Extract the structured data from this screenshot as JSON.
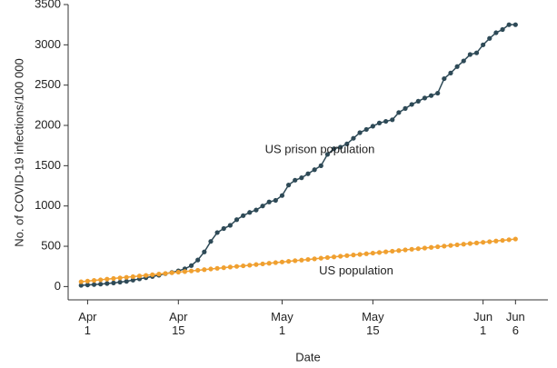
{
  "chart_data": {
    "type": "line",
    "y_label": "No. of COVID-19 infections/100 000",
    "x_label": "Date",
    "x": [
      "03-31",
      "04-01",
      "04-02",
      "04-03",
      "04-04",
      "04-05",
      "04-06",
      "04-07",
      "04-08",
      "04-09",
      "04-10",
      "04-11",
      "04-12",
      "04-13",
      "04-14",
      "04-15",
      "04-16",
      "04-17",
      "04-18",
      "04-19",
      "04-20",
      "04-21",
      "04-22",
      "04-23",
      "04-24",
      "04-25",
      "04-26",
      "04-27",
      "04-28",
      "04-29",
      "04-30",
      "05-01",
      "05-02",
      "05-03",
      "05-04",
      "05-05",
      "05-06",
      "05-07",
      "05-08",
      "05-09",
      "05-10",
      "05-11",
      "05-12",
      "05-13",
      "05-14",
      "05-15",
      "05-16",
      "05-17",
      "05-18",
      "05-19",
      "05-20",
      "05-21",
      "05-22",
      "05-23",
      "05-24",
      "05-25",
      "05-26",
      "05-27",
      "05-28",
      "05-29",
      "05-30",
      "05-31",
      "06-01",
      "06-02",
      "06-03",
      "06-04",
      "06-05",
      "06-06"
    ],
    "series": [
      {
        "name": "US prison population",
        "color": "#2e4a57",
        "values": [
          15,
          20,
          25,
          30,
          38,
          45,
          55,
          65,
          80,
          95,
          110,
          125,
          140,
          160,
          175,
          195,
          220,
          260,
          330,
          430,
          560,
          670,
          720,
          760,
          830,
          880,
          920,
          950,
          1000,
          1050,
          1070,
          1130,
          1260,
          1320,
          1350,
          1400,
          1450,
          1500,
          1640,
          1710,
          1730,
          1770,
          1840,
          1910,
          1950,
          1990,
          2030,
          2050,
          2070,
          2160,
          2210,
          2260,
          2300,
          2340,
          2370,
          2400,
          2580,
          2650,
          2730,
          2800,
          2880,
          2900,
          3000,
          3080,
          3150,
          3190,
          3250,
          3250
        ]
      },
      {
        "name": "US population",
        "color": "#f0a030",
        "values": [
          60,
          68,
          76,
          84,
          92,
          100,
          108,
          115,
          123,
          131,
          139,
          147,
          155,
          163,
          171,
          179,
          186,
          194,
          202,
          210,
          218,
          226,
          234,
          242,
          250,
          257,
          265,
          273,
          281,
          289,
          297,
          305,
          313,
          321,
          328,
          336,
          344,
          352,
          360,
          368,
          376,
          384,
          392,
          399,
          407,
          415,
          423,
          431,
          439,
          447,
          455,
          463,
          470,
          478,
          486,
          494,
          502,
          510,
          518,
          526,
          534,
          541,
          549,
          557,
          565,
          573,
          581,
          590
        ]
      }
    ],
    "xlim": [
      "03-29",
      "06-11"
    ],
    "xticks": [
      {
        "value": "04-01",
        "label": [
          "Apr",
          "1"
        ]
      },
      {
        "value": "04-15",
        "label": [
          "Apr",
          "15"
        ]
      },
      {
        "value": "05-01",
        "label": [
          "May",
          "1"
        ]
      },
      {
        "value": "05-15",
        "label": [
          "May",
          "15"
        ]
      },
      {
        "value": "06-01",
        "label": [
          "Jun",
          "1"
        ]
      },
      {
        "value": "06-06",
        "label": [
          "Jun",
          "6"
        ]
      }
    ],
    "ylim": [
      -165,
      3500
    ],
    "yticks": [
      0,
      500,
      1000,
      1500,
      2000,
      2500,
      3000,
      3500
    ],
    "grid": false
  }
}
